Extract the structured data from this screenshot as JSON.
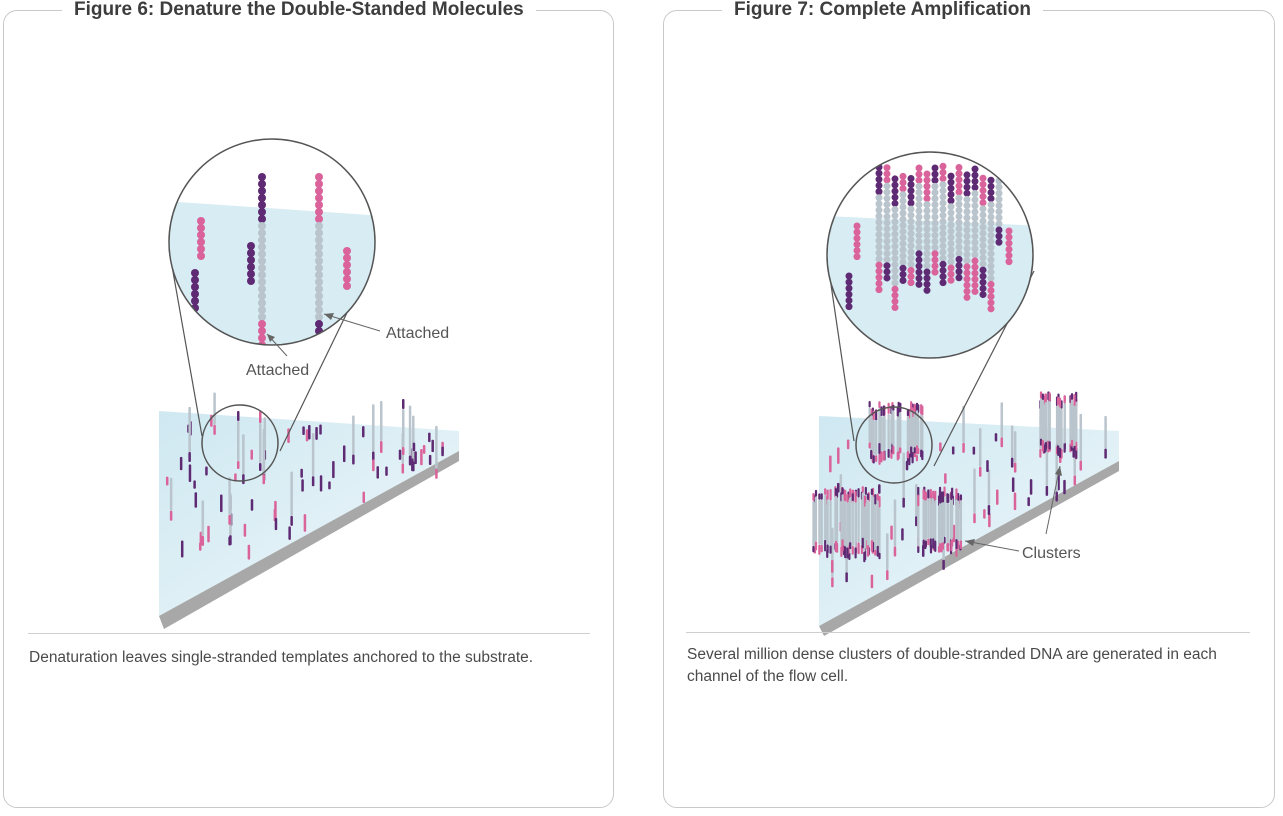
{
  "figures": [
    {
      "title": "Figure 6: Denature the Double-Standed Molecules",
      "labels": [
        "Attached",
        "Attached"
      ],
      "caption": "Denaturation leaves single-stranded templates anchored to the substrate."
    },
    {
      "title": "Figure 7: Complete Amplification",
      "labels": [
        "Clusters"
      ],
      "caption": "Several million dense clusters of double-stranded DNA are generated in each channel of the flow cell."
    }
  ],
  "colors": {
    "pink": "#d9639a",
    "purple": "#5e2a73",
    "grey": "#b9c4cc",
    "substrate": "#d7ecf3",
    "edge": "#9a9a9a"
  }
}
